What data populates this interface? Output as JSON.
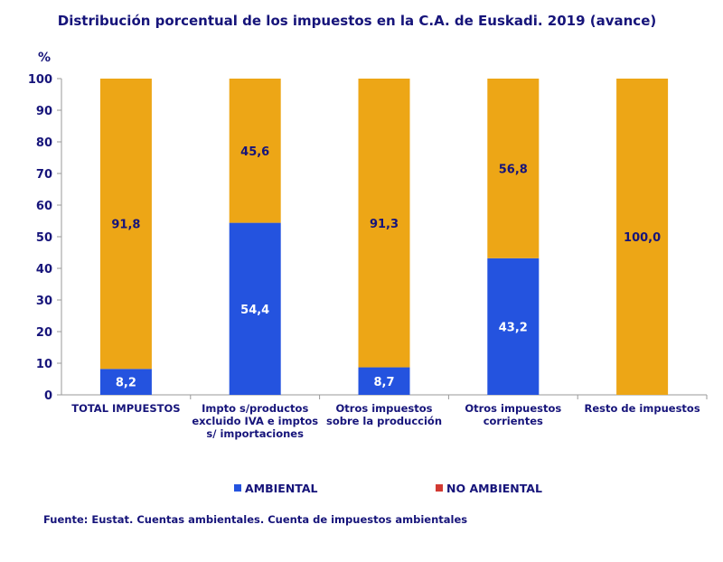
{
  "chart_data": {
    "type": "bar",
    "stacked": true,
    "title": "Distribución porcentual de los impuestos en la C.A. de Euskadi. 2019 (avance)",
    "ylabel": "%",
    "ylim": [
      0,
      100
    ],
    "yticks": [
      "0",
      "10",
      "20",
      "30",
      "40",
      "50",
      "60",
      "70",
      "80",
      "90",
      "100"
    ],
    "categories": [
      [
        "TOTAL IMPUESTOS"
      ],
      [
        "Impto s/productos",
        "excluido IVA e imptos",
        "s/ importaciones"
      ],
      [
        "Otros impuestos",
        "sobre la producción"
      ],
      [
        "Otros impuestos",
        "corrientes"
      ],
      [
        "Resto de impuestos"
      ]
    ],
    "series": [
      {
        "name": "AMBIENTAL",
        "color": "#2453df",
        "label_color": "#ffffff",
        "values": [
          8.2,
          54.4,
          8.7,
          43.2,
          0.0
        ],
        "labels": [
          "8,2",
          "54,4",
          "8,7",
          "43,2",
          ""
        ]
      },
      {
        "name": "NO AMBIENTAL",
        "color": "#eda616",
        "label_color": "#16147a",
        "values": [
          91.8,
          45.6,
          91.3,
          56.8,
          100.0
        ],
        "labels": [
          "91,8",
          "45,6",
          "91,3",
          "56,8",
          "100,0"
        ]
      }
    ],
    "legend": {
      "placement": "bottom",
      "colors": [
        "#2453df",
        "#d23a32"
      ]
    },
    "grid": false
  },
  "source_text": "Fuente: Eustat. Cuentas ambientales. Cuenta de impuestos ambientales"
}
